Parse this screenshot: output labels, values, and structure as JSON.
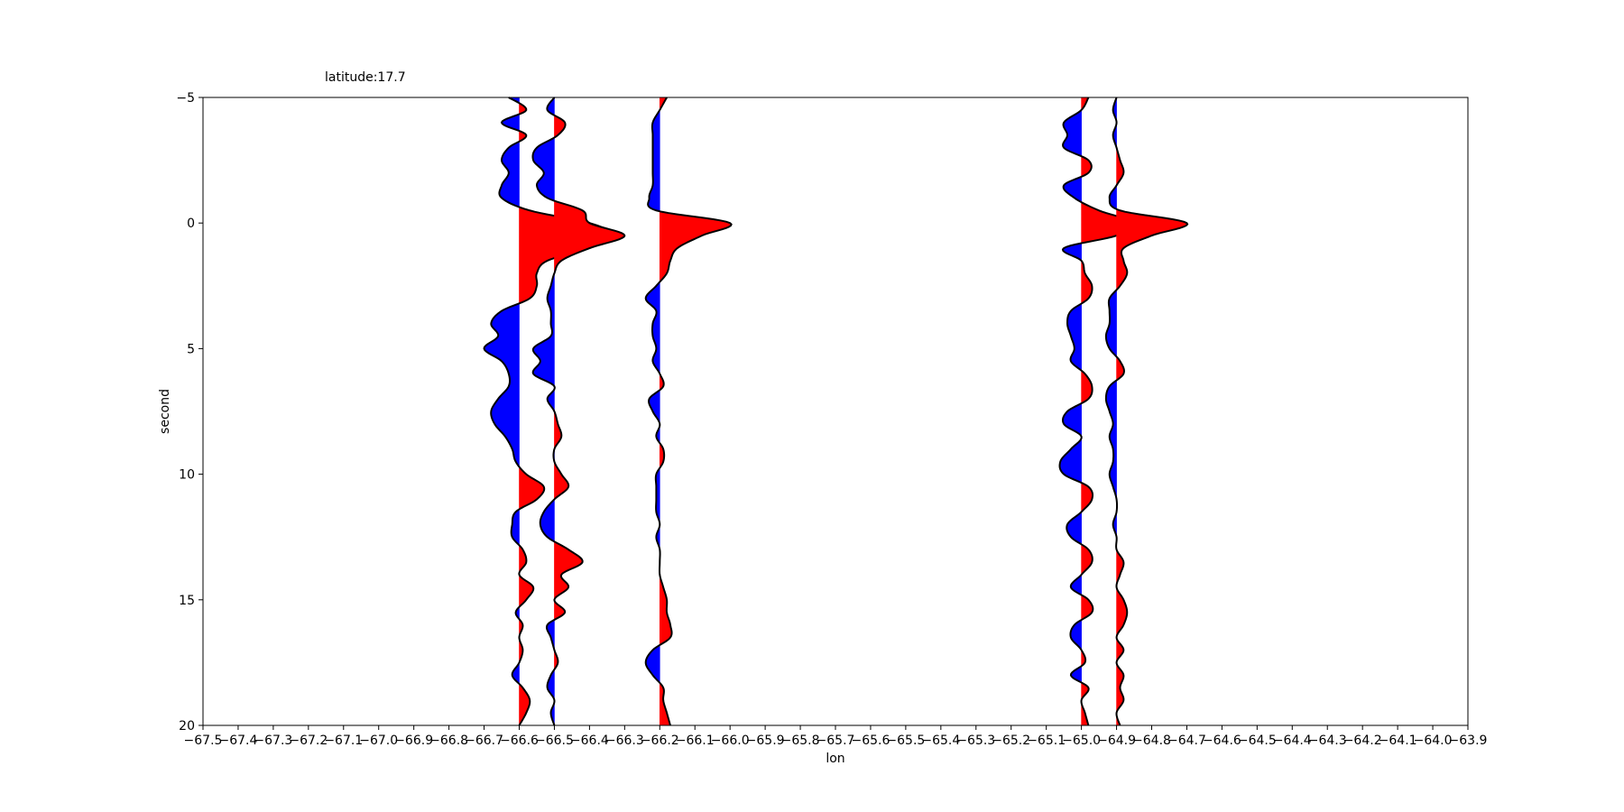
{
  "chart_data": {
    "type": "seismic-wiggle",
    "title": "latitude:17.7",
    "xlabel": "lon",
    "ylabel": "second",
    "xlim": [
      -67.5,
      -63.9
    ],
    "ylim": [
      20,
      -5
    ],
    "x_ticks": [
      -67.5,
      -67.4,
      -67.3,
      -67.2,
      -67.1,
      -67.0,
      -66.9,
      -66.8,
      -66.7,
      -66.6,
      -66.5,
      -66.4,
      -66.3,
      -66.2,
      -66.1,
      -66.0,
      -65.9,
      -65.8,
      -65.7,
      -65.6,
      -65.5,
      -65.4,
      -65.3,
      -65.2,
      -65.1,
      -65.0,
      -64.9,
      -64.8,
      -64.7,
      -64.6,
      -64.5,
      -64.4,
      -64.3,
      -64.2,
      -64.1,
      -64.0,
      -63.9
    ],
    "x_tick_labels": [
      "−67.5",
      "−67.4",
      "−67.3",
      "−67.2",
      "−67.1",
      "−67.0",
      "−66.9",
      "−66.8",
      "−66.7",
      "−66.6",
      "−66.5",
      "−66.4",
      "−66.3",
      "−66.2",
      "−66.1",
      "−66.0",
      "−65.9",
      "−65.8",
      "−65.7",
      "−65.6",
      "−65.5",
      "−65.4",
      "−65.3",
      "−65.2",
      "−65.1",
      "−65.0",
      "−64.9",
      "−64.8",
      "−64.7",
      "−64.6",
      "−64.5",
      "−64.4",
      "−64.3",
      "−64.2",
      "−64.1",
      "−64.0",
      "−63.9"
    ],
    "y_ticks": [
      -5,
      0,
      5,
      10,
      15,
      20
    ],
    "y_tick_labels": [
      "−5",
      "0",
      "5",
      "10",
      "15",
      "20"
    ],
    "grid": false,
    "positive_fill": "#ff0000",
    "negative_fill": "#0000ff",
    "trace_stroke": "#000000",
    "traces": [
      {
        "lon": -66.6,
        "points": [
          [
            -5,
            -0.03
          ],
          [
            -4.5,
            0.02
          ],
          [
            -4,
            -0.05
          ],
          [
            -3.5,
            0.02
          ],
          [
            -3,
            -0.03
          ],
          [
            -2.5,
            -0.05
          ],
          [
            -2,
            -0.03
          ],
          [
            -1.5,
            -0.05
          ],
          [
            -1,
            -0.05
          ],
          [
            -0.5,
            0.03
          ],
          [
            0,
            0.2
          ],
          [
            0.5,
            0.27
          ],
          [
            1,
            0.2
          ],
          [
            1.5,
            0.08
          ],
          [
            2,
            0.05
          ],
          [
            2.5,
            0.05
          ],
          [
            3,
            0.03
          ],
          [
            3.5,
            -0.05
          ],
          [
            4,
            -0.08
          ],
          [
            4.5,
            -0.06
          ],
          [
            5,
            -0.1
          ],
          [
            5.5,
            -0.05
          ],
          [
            6,
            -0.03
          ],
          [
            6.5,
            -0.03
          ],
          [
            7,
            -0.06
          ],
          [
            7.5,
            -0.08
          ],
          [
            8,
            -0.07
          ],
          [
            8.5,
            -0.04
          ],
          [
            9,
            -0.02
          ],
          [
            9.5,
            -0.01
          ],
          [
            10,
            0.02
          ],
          [
            10.5,
            0.07
          ],
          [
            11,
            0.05
          ],
          [
            11.5,
            -0.01
          ],
          [
            12,
            -0.02
          ],
          [
            12.5,
            -0.02
          ],
          [
            13,
            0.01
          ],
          [
            13.5,
            0.02
          ],
          [
            14,
            0.0
          ],
          [
            14.5,
            0.04
          ],
          [
            15,
            0.02
          ],
          [
            15.5,
            -0.01
          ],
          [
            16,
            0.01
          ],
          [
            16.5,
            0.0
          ],
          [
            17,
            0.01
          ],
          [
            17.5,
            0.0
          ],
          [
            18,
            -0.02
          ],
          [
            18.5,
            0.01
          ],
          [
            19,
            0.03
          ],
          [
            19.5,
            0.02
          ],
          [
            20,
            0.0
          ]
        ]
      },
      {
        "lon": -66.5,
        "points": [
          [
            -5,
            0.0
          ],
          [
            -4.5,
            -0.02
          ],
          [
            -4,
            0.03
          ],
          [
            -3.5,
            0.01
          ],
          [
            -3,
            -0.05
          ],
          [
            -2.5,
            -0.06
          ],
          [
            -2,
            -0.03
          ],
          [
            -1.5,
            -0.05
          ],
          [
            -1,
            -0.02
          ],
          [
            -0.5,
            0.08
          ],
          [
            0,
            0.1
          ],
          [
            0.5,
            0.2
          ],
          [
            1,
            0.1
          ],
          [
            1.5,
            0.02
          ],
          [
            2,
            0.0
          ],
          [
            2.5,
            -0.01
          ],
          [
            3,
            -0.02
          ],
          [
            3.5,
            -0.01
          ],
          [
            4,
            -0.01
          ],
          [
            4.5,
            -0.01
          ],
          [
            5,
            -0.06
          ],
          [
            5.5,
            -0.04
          ],
          [
            6,
            -0.06
          ],
          [
            6.5,
            0.0
          ],
          [
            7,
            -0.02
          ],
          [
            7.5,
            0.0
          ],
          [
            8,
            0.01
          ],
          [
            8.5,
            0.02
          ],
          [
            9,
            0.0
          ],
          [
            9.5,
            0.0
          ],
          [
            10,
            0.02
          ],
          [
            10.5,
            0.04
          ],
          [
            11,
            0.0
          ],
          [
            11.5,
            -0.03
          ],
          [
            12,
            -0.04
          ],
          [
            12.5,
            -0.02
          ],
          [
            13,
            0.04
          ],
          [
            13.5,
            0.08
          ],
          [
            14,
            0.02
          ],
          [
            14.5,
            0.04
          ],
          [
            15,
            0.0
          ],
          [
            15.5,
            0.03
          ],
          [
            16,
            -0.02
          ],
          [
            16.5,
            -0.01
          ],
          [
            17,
            0.0
          ],
          [
            17.5,
            0.01
          ],
          [
            18,
            -0.01
          ],
          [
            18.5,
            -0.02
          ],
          [
            19,
            0.0
          ],
          [
            19.5,
            -0.01
          ],
          [
            20,
            0.0
          ]
        ]
      },
      {
        "lon": -66.2,
        "points": [
          [
            -5,
            0.02
          ],
          [
            -4.5,
            0.0
          ],
          [
            -4,
            -0.02
          ],
          [
            -3.5,
            -0.02
          ],
          [
            -3,
            -0.02
          ],
          [
            -2.5,
            -0.02
          ],
          [
            -2,
            -0.02
          ],
          [
            -1.5,
            -0.02
          ],
          [
            -1,
            -0.03
          ],
          [
            -0.5,
            -0.01
          ],
          [
            0,
            0.2
          ],
          [
            0.5,
            0.12
          ],
          [
            1,
            0.05
          ],
          [
            1.5,
            0.03
          ],
          [
            2,
            0.02
          ],
          [
            2.5,
            -0.01
          ],
          [
            3,
            -0.04
          ],
          [
            3.5,
            -0.01
          ],
          [
            4,
            -0.02
          ],
          [
            4.5,
            -0.02
          ],
          [
            5,
            -0.01
          ],
          [
            5.5,
            -0.02
          ],
          [
            6,
            0.0
          ],
          [
            6.5,
            0.01
          ],
          [
            7,
            -0.03
          ],
          [
            7.5,
            -0.02
          ],
          [
            8,
            0.0
          ],
          [
            8.5,
            -0.01
          ],
          [
            9,
            0.01
          ],
          [
            9.5,
            0.01
          ],
          [
            10,
            -0.01
          ],
          [
            10.5,
            -0.01
          ],
          [
            11,
            -0.01
          ],
          [
            11.5,
            -0.01
          ],
          [
            12,
            0.0
          ],
          [
            12.5,
            -0.01
          ],
          [
            13,
            0.0
          ],
          [
            13.5,
            0.0
          ],
          [
            14,
            0.0
          ],
          [
            14.5,
            0.01
          ],
          [
            15,
            0.02
          ],
          [
            15.5,
            0.02
          ],
          [
            16,
            0.03
          ],
          [
            16.5,
            0.03
          ],
          [
            17,
            -0.02
          ],
          [
            17.5,
            -0.04
          ],
          [
            18,
            -0.02
          ],
          [
            18.5,
            0.01
          ],
          [
            19,
            0.01
          ],
          [
            19.5,
            0.02
          ],
          [
            20,
            0.03
          ]
        ]
      },
      {
        "lon": -65.0,
        "points": [
          [
            -5,
            0.02
          ],
          [
            -4.5,
            0.0
          ],
          [
            -4,
            -0.05
          ],
          [
            -3.5,
            -0.04
          ],
          [
            -3,
            -0.05
          ],
          [
            -2.5,
            0.02
          ],
          [
            -2,
            0.02
          ],
          [
            -1.5,
            -0.05
          ],
          [
            -1,
            -0.02
          ],
          [
            -0.5,
            0.05
          ],
          [
            0,
            0.15
          ],
          [
            0.5,
            0.1
          ],
          [
            1,
            -0.05
          ],
          [
            1.5,
            0.0
          ],
          [
            2,
            0.01
          ],
          [
            2.5,
            0.03
          ],
          [
            3,
            0.02
          ],
          [
            3.5,
            -0.03
          ],
          [
            4,
            -0.04
          ],
          [
            4.5,
            -0.03
          ],
          [
            5,
            -0.02
          ],
          [
            5.5,
            -0.03
          ],
          [
            6,
            0.01
          ],
          [
            6.5,
            0.03
          ],
          [
            7,
            0.02
          ],
          [
            7.5,
            -0.04
          ],
          [
            8,
            -0.05
          ],
          [
            8.5,
            0.0
          ],
          [
            9,
            -0.03
          ],
          [
            9.5,
            -0.06
          ],
          [
            10,
            -0.05
          ],
          [
            10.5,
            0.02
          ],
          [
            11,
            0.03
          ],
          [
            11.5,
            0.0
          ],
          [
            12,
            -0.04
          ],
          [
            12.5,
            -0.03
          ],
          [
            13,
            0.02
          ],
          [
            13.5,
            0.03
          ],
          [
            14,
            0.0
          ],
          [
            14.5,
            -0.03
          ],
          [
            15,
            0.02
          ],
          [
            15.5,
            0.03
          ],
          [
            16,
            -0.02
          ],
          [
            16.5,
            -0.03
          ],
          [
            17,
            0.0
          ],
          [
            17.5,
            0.01
          ],
          [
            18,
            -0.03
          ],
          [
            18.5,
            0.02
          ],
          [
            19,
            0.0
          ],
          [
            19.5,
            0.01
          ],
          [
            20,
            0.02
          ]
        ]
      },
      {
        "lon": -64.9,
        "points": [
          [
            -5,
            0.0
          ],
          [
            -4.5,
            -0.01
          ],
          [
            -4,
            0.0
          ],
          [
            -3.5,
            -0.01
          ],
          [
            -3,
            0.0
          ],
          [
            -2.5,
            0.01
          ],
          [
            -2,
            0.02
          ],
          [
            -1.5,
            0.0
          ],
          [
            -1,
            -0.02
          ],
          [
            -0.5,
            0.01
          ],
          [
            0,
            0.2
          ],
          [
            0.5,
            0.1
          ],
          [
            1,
            0.02
          ],
          [
            1.5,
            0.02
          ],
          [
            2,
            0.03
          ],
          [
            2.5,
            0.01
          ],
          [
            3,
            -0.02
          ],
          [
            3.5,
            -0.02
          ],
          [
            4,
            -0.02
          ],
          [
            4.5,
            -0.03
          ],
          [
            5,
            -0.02
          ],
          [
            5.5,
            0.01
          ],
          [
            6,
            0.02
          ],
          [
            6.5,
            -0.02
          ],
          [
            7,
            -0.03
          ],
          [
            7.5,
            -0.02
          ],
          [
            8,
            -0.01
          ],
          [
            8.5,
            -0.02
          ],
          [
            9,
            -0.01
          ],
          [
            9.5,
            -0.01
          ],
          [
            10,
            -0.02
          ],
          [
            10.5,
            -0.01
          ],
          [
            11,
            0.0
          ],
          [
            11.5,
            0.0
          ],
          [
            12,
            -0.01
          ],
          [
            12.5,
            0.0
          ],
          [
            13,
            0.0
          ],
          [
            13.5,
            0.02
          ],
          [
            14,
            0.01
          ],
          [
            14.5,
            0.0
          ],
          [
            15,
            0.02
          ],
          [
            15.5,
            0.03
          ],
          [
            16,
            0.02
          ],
          [
            16.5,
            0.0
          ],
          [
            17,
            0.02
          ],
          [
            17.5,
            0.0
          ],
          [
            18,
            0.02
          ],
          [
            18.5,
            0.01
          ],
          [
            19,
            0.02
          ],
          [
            19.5,
            0.0
          ],
          [
            20,
            0.01
          ]
        ]
      }
    ]
  }
}
